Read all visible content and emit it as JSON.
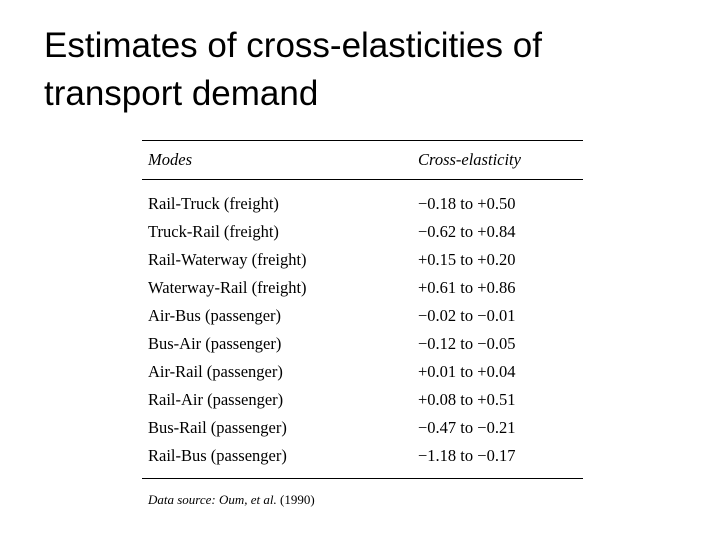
{
  "slide": {
    "title": "Estimates of cross-elasticities of transport demand"
  },
  "table": {
    "headers": {
      "modes": "Modes",
      "cross_elasticity": "Cross-elasticity"
    },
    "rows": [
      {
        "mode": "Rail-Truck (freight)",
        "value": "−0.18 to +0.50"
      },
      {
        "mode": "Truck-Rail (freight)",
        "value": "−0.62 to +0.84"
      },
      {
        "mode": "Rail-Waterway (freight)",
        "value": "+0.15 to +0.20"
      },
      {
        "mode": "Waterway-Rail (freight)",
        "value": "+0.61 to +0.86"
      },
      {
        "mode": "Air-Bus (passenger)",
        "value": "−0.02 to −0.01"
      },
      {
        "mode": "Bus-Air (passenger)",
        "value": "−0.12 to −0.05"
      },
      {
        "mode": "Air-Rail (passenger)",
        "value": "+0.01 to +0.04"
      },
      {
        "mode": "Rail-Air (passenger)",
        "value": "+0.08 to +0.51"
      },
      {
        "mode": "Bus-Rail (passenger)",
        "value": "−0.47 to −0.21"
      },
      {
        "mode": "Rail-Bus (passenger)",
        "value": "−1.18 to −0.17"
      }
    ]
  },
  "source": {
    "label": "Data source:",
    "authors": "Oum, et al.",
    "year": "(1990)"
  }
}
